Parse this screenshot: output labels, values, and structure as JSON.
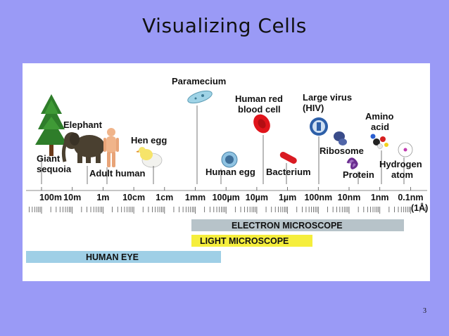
{
  "slide": {
    "title": "Visualizing Cells",
    "page_number": "3"
  },
  "specimens": {
    "giant_sequoia_1": "Giant",
    "giant_sequoia_2": "sequoia",
    "elephant": "Elephant",
    "adult_human": "Adult human",
    "hen_egg": "Hen egg",
    "paramecium": "Paramecium",
    "human_red_1": "Human red",
    "human_red_2": "blood cell",
    "human_egg": "Human egg",
    "bacterium": "Bacterium",
    "large_virus_1": "Large virus",
    "large_virus_2": "(HIV)",
    "ribosome": "Ribosome",
    "protein": "Protein",
    "amino_1": "Amino",
    "amino_2": "acid",
    "hydrogen_1": "Hydrogen",
    "hydrogen_2": "atom"
  },
  "scale": {
    "ticks": [
      "100m",
      "10m",
      "1m",
      "10cm",
      "1cm",
      "1mm",
      "100µm",
      "10µm",
      "1µm",
      "100nm",
      "10nm",
      "1nm",
      "0.1nm"
    ],
    "angstrom_note": "(1Å)"
  },
  "ranges": {
    "electron": "ELECTRON MICROSCOPE",
    "light": "LIGHT MICROSCOPE",
    "eye": "HUMAN EYE"
  },
  "colors": {
    "background": "#9a9af6",
    "electron_bar": "#b7c3c9",
    "light_bar": "#f5ee3c",
    "eye_bar": "#9fcfe6",
    "blood_cell": "#e0141b"
  }
}
